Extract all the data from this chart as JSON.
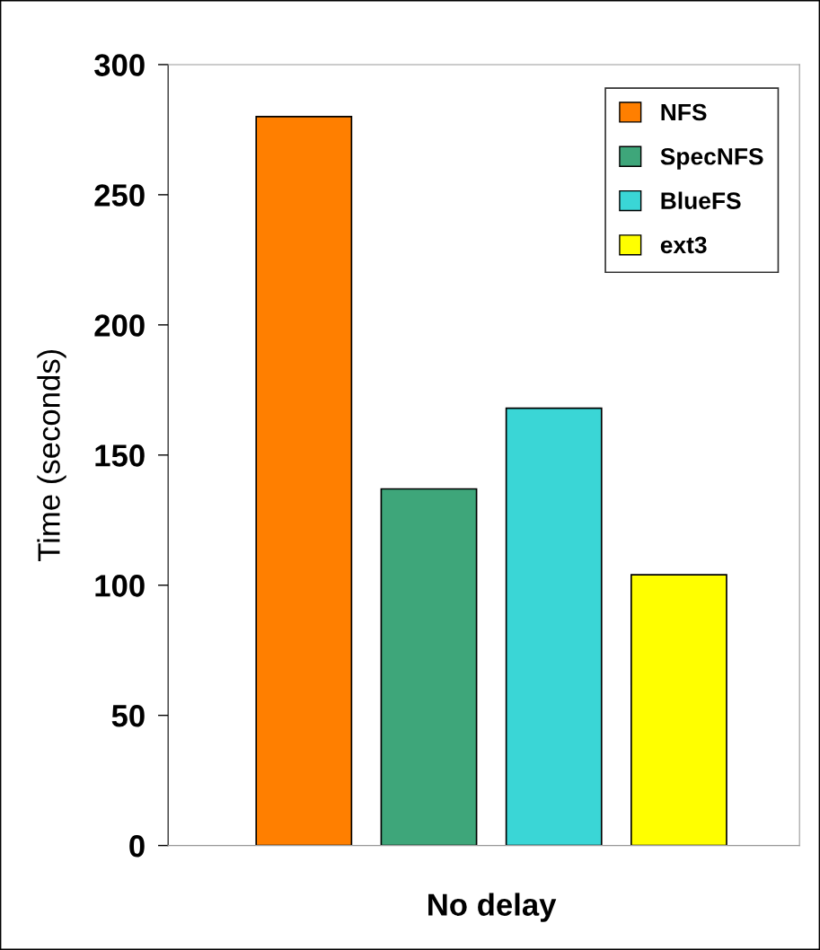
{
  "chart_data": {
    "type": "bar",
    "ylabel": "Time (seconds)",
    "categories": [
      "No delay"
    ],
    "series": [
      {
        "name": "NFS",
        "color": "#ff7f00",
        "values": [
          280
        ]
      },
      {
        "name": "SpecNFS",
        "color": "#3ea67a",
        "values": [
          137
        ]
      },
      {
        "name": "BlueFS",
        "color": "#3ad6d6",
        "values": [
          168
        ]
      },
      {
        "name": "ext3",
        "color": "#ffff00",
        "values": [
          104
        ]
      }
    ],
    "ylim": [
      0,
      300
    ],
    "yticks": [
      0,
      50,
      100,
      150,
      200,
      250,
      300
    ],
    "grid": false,
    "legend": "top right"
  }
}
